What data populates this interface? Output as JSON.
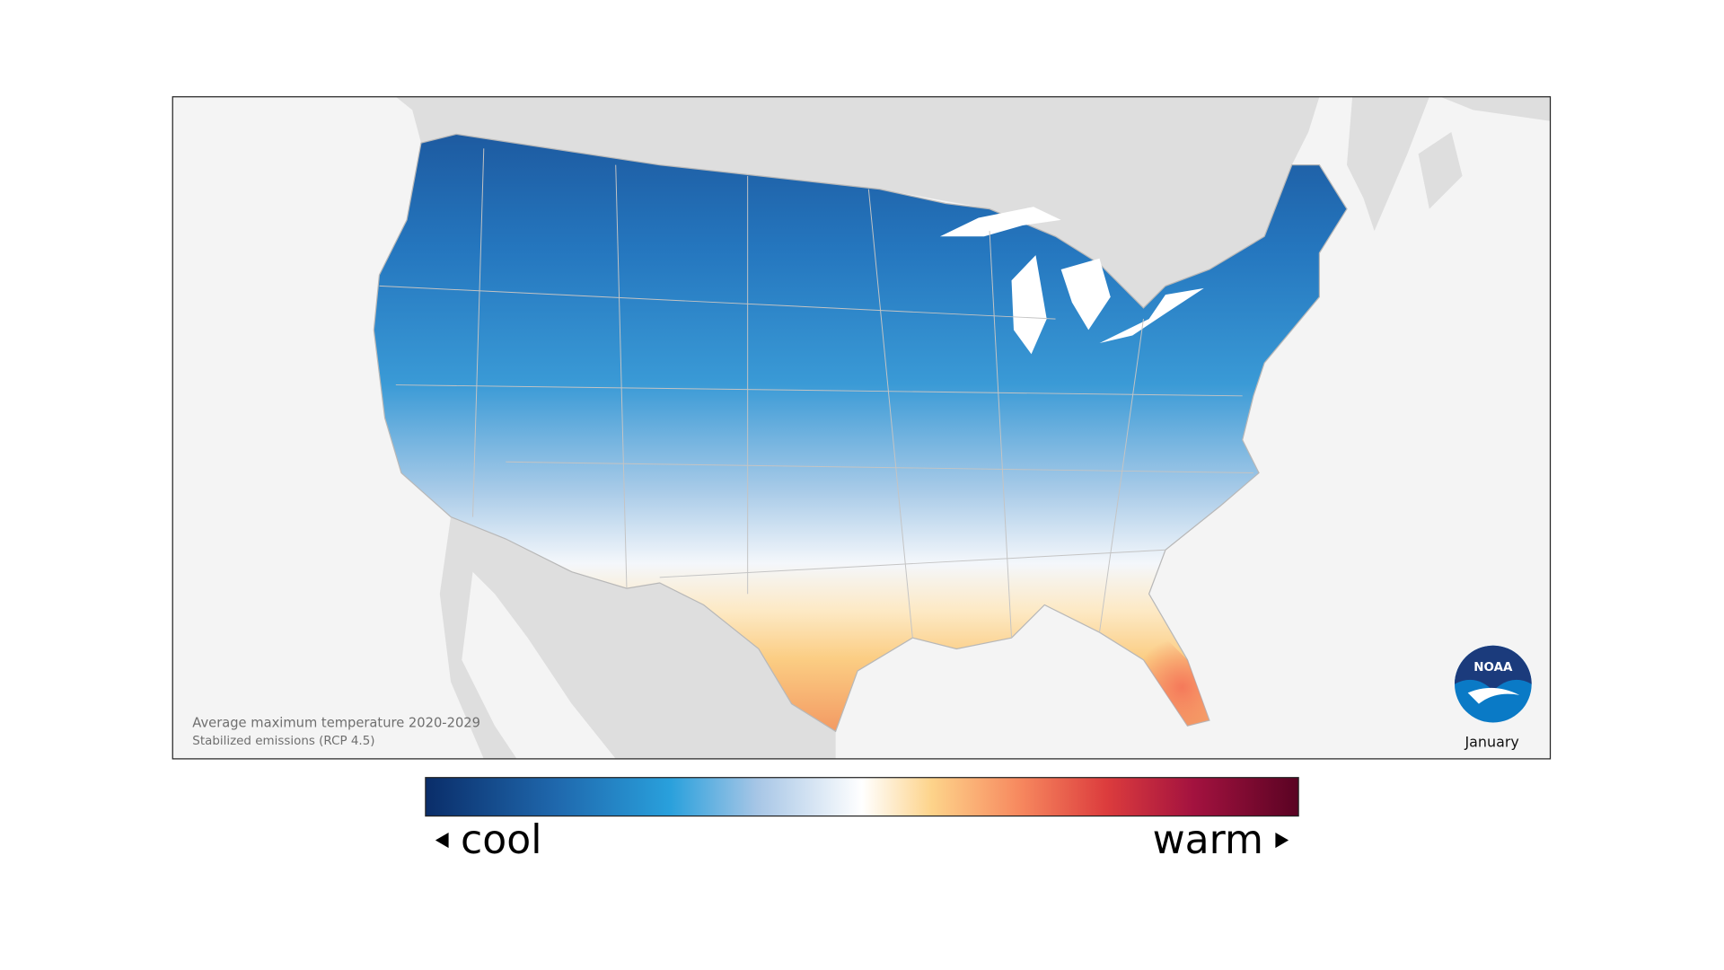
{
  "map": {
    "caption": {
      "title": "Average maximum temperature 2020-2029",
      "subtitle": "Stabilized emissions (RCP 4.5)"
    },
    "logo": "NOAA",
    "month": "January"
  },
  "legend": {
    "low": "cool",
    "high": "warm"
  }
}
